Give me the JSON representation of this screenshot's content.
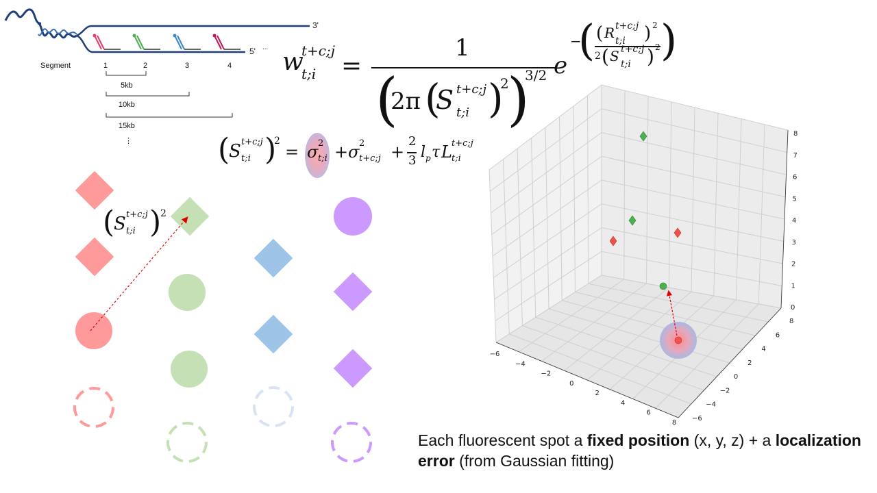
{
  "dna": {
    "end3": "3'",
    "end5": "5'",
    "ellipsis": "...",
    "segment_label": "Segment",
    "segments": [
      "1",
      "2",
      "3",
      "4"
    ],
    "spans": [
      "5kb",
      "10kb",
      "15kb"
    ],
    "vdots": "⋮",
    "probe_colors": [
      "#e0406a",
      "#4caf50",
      "#3a86c8",
      "#c2185b"
    ]
  },
  "formula_w": {
    "lhs_base": "w",
    "lhs_sup": "t+c;j",
    "lhs_sub": "t;i",
    "numerator": "1",
    "den_2pi": "2π",
    "den_S": "S",
    "den_S_sup": "t+c;j",
    "den_S_sub": "t;i",
    "den_sq": "2",
    "den_pow": "3/2",
    "exp_e": "e",
    "exp_minus": "−",
    "exp_R": "R",
    "exp_R_sup": "t+c;j",
    "exp_R_sub": "t;i",
    "exp_two": "2",
    "exp_S": "S",
    "exp_S_sup": "t+c;j",
    "exp_S_sub": "t;i"
  },
  "formula_s": {
    "S": "S",
    "S_sup": "t+c;j",
    "S_sub": "t;i",
    "sq": "2",
    "eq": "=",
    "sigma1": "σ",
    "sigma1_sup": "2",
    "sigma1_sub": "t;i",
    "plus1": "+",
    "sigma2": "σ",
    "sigma2_sup": "2",
    "sigma2_sub": "t+c;j",
    "plus2": "+",
    "frac_num": "2",
    "frac_den": "3",
    "lp": "l",
    "lp_sub": "p",
    "tau": "τ",
    "L": "L",
    "L_sup": "t+c;j",
    "L_sub": "t;i"
  },
  "formula_inline": {
    "S": "S",
    "S_sup": "t+c;j",
    "S_sub": "t;i",
    "sq": "2"
  },
  "shape_colors": {
    "red": "#ff9a9a",
    "green": "#c5e0b4",
    "blue": "#9dc3e6",
    "purple": "#cc99ff",
    "lightblue": "#dae3f3"
  },
  "plot3d": {
    "x_ticks": [
      "−6",
      "−4",
      "−2",
      "0",
      "2",
      "4",
      "6",
      "8"
    ],
    "y_ticks": [
      "−6",
      "−4",
      "−2",
      "0",
      "2",
      "4",
      "6",
      "8"
    ],
    "z_ticks": [
      "0",
      "1",
      "2",
      "3",
      "4",
      "5",
      "6",
      "7",
      "8"
    ]
  },
  "caption": {
    "part1": "Each fluorescent spot a ",
    "bold1": "fixed position",
    "part2": " (x, y, z) + a ",
    "bold2": "localization",
    "bold3": "error",
    "part3": " (from Gaussian fitting)"
  }
}
